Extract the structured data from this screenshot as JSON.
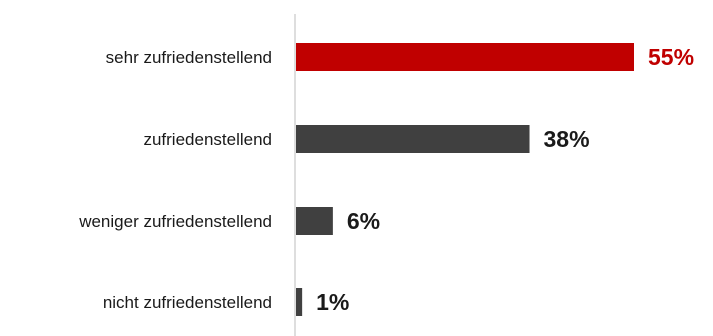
{
  "chart_data": {
    "type": "bar",
    "orientation": "horizontal",
    "title": "",
    "xlabel": "",
    "ylabel": "",
    "xlim": [
      0,
      60
    ],
    "grid": false,
    "legend": "none",
    "categories": [
      "sehr zufriedenstellend",
      "zufriedenstellend",
      "weniger zufriedenstellend",
      "nicht zufriedenstellend"
    ],
    "values": [
      55,
      38,
      6,
      1
    ],
    "value_labels": [
      "55%",
      "38%",
      "6%",
      "1%"
    ],
    "colors": [
      "#c00000",
      "#404040",
      "#404040",
      "#404040"
    ],
    "value_label_colors": [
      "#c00000",
      "#1a1a1a",
      "#1a1a1a",
      "#1a1a1a"
    ]
  }
}
